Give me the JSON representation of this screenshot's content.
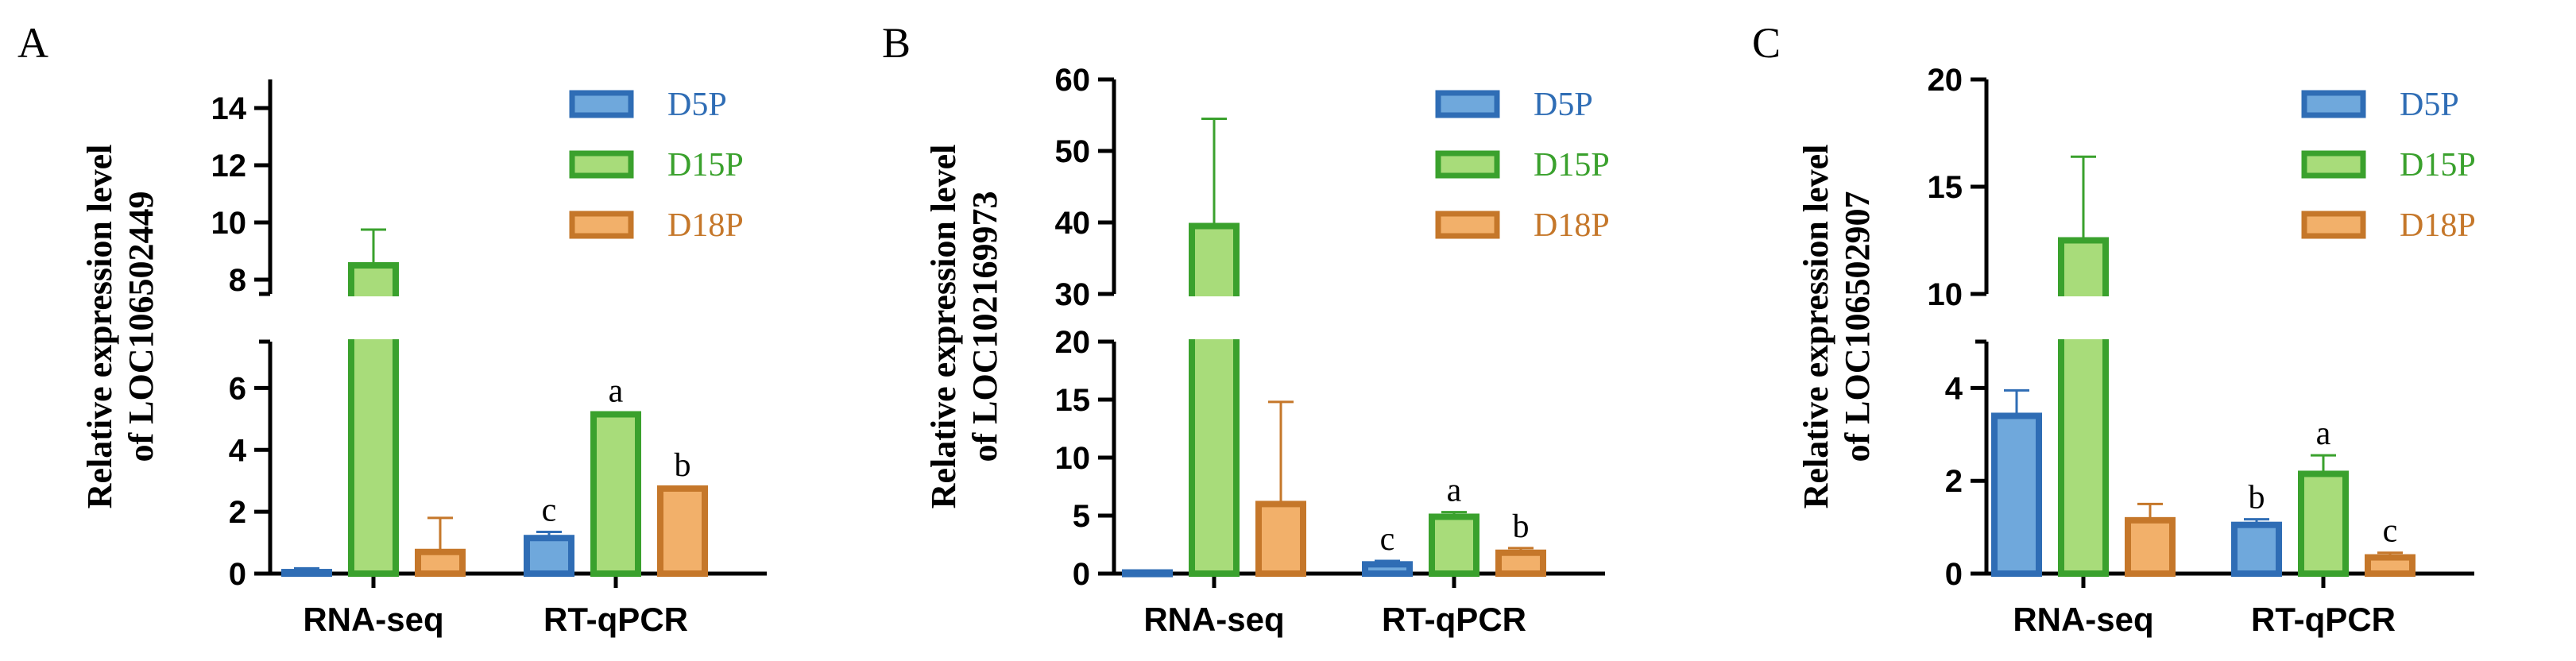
{
  "colors": {
    "D5P": {
      "fill": "#6fa8dc",
      "stroke": "#2f6db5",
      "text": "#2f6db5"
    },
    "D15P": {
      "fill": "#a8dc7a",
      "stroke": "#3aa12d",
      "text": "#3aa12d"
    },
    "D18P": {
      "fill": "#f2b06a",
      "stroke": "#c5772a",
      "text": "#c5772a"
    }
  },
  "chart_data": [
    {
      "type": "bar",
      "panel": "A",
      "ylabel": [
        "Relative expression level",
        "of LOC106502449"
      ],
      "categories": [
        "RNA-seq",
        "RT-qPCR"
      ],
      "legend": [
        "D5P",
        "D15P",
        "D18P"
      ],
      "legend_position": "top-right",
      "axis_break": true,
      "ylim_lower": [
        0,
        7.5
      ],
      "ylim_upper": [
        7.5,
        15
      ],
      "yticks_lower": [
        0,
        2,
        4,
        6
      ],
      "yticks_upper": [
        8,
        10,
        12,
        14
      ],
      "series": [
        {
          "name": "D5P",
          "values": [
            0.05,
            1.15
          ],
          "errors": [
            0.12,
            0.2
          ]
        },
        {
          "name": "D15P",
          "values": [
            8.5,
            5.15
          ],
          "errors": [
            1.25,
            0.05
          ]
        },
        {
          "name": "D18P",
          "values": [
            0.7,
            2.75
          ],
          "errors": [
            1.1,
            0.05
          ]
        }
      ],
      "significance": [
        [
          null,
          "c"
        ],
        [
          null,
          "a"
        ],
        [
          null,
          "b"
        ]
      ]
    },
    {
      "type": "bar",
      "panel": "B",
      "ylabel": [
        "Relative expression level",
        "of LOC102169973"
      ],
      "categories": [
        "RNA-seq",
        "RT-qPCR"
      ],
      "legend": [
        "D5P",
        "D15P",
        "D18P"
      ],
      "legend_position": "top-right",
      "axis_break": true,
      "ylim_lower": [
        0,
        20
      ],
      "ylim_upper": [
        30,
        60
      ],
      "yticks_lower": [
        0,
        5,
        10,
        15,
        20
      ],
      "yticks_upper": [
        30,
        40,
        50,
        60
      ],
      "series": [
        {
          "name": "D5P",
          "values": [
            0.1,
            0.8
          ],
          "errors": [
            0.05,
            0.3
          ]
        },
        {
          "name": "D15P",
          "values": [
            39.5,
            4.9
          ],
          "errors": [
            15.0,
            0.4
          ]
        },
        {
          "name": "D18P",
          "values": [
            6.0,
            1.8
          ],
          "errors": [
            8.8,
            0.4
          ]
        }
      ],
      "significance": [
        [
          null,
          "c"
        ],
        [
          null,
          "a"
        ],
        [
          null,
          "b"
        ]
      ]
    },
    {
      "type": "bar",
      "panel": "C",
      "ylabel": [
        "Relative expression level",
        "of LOC106502907"
      ],
      "categories": [
        "RNA-seq",
        "RT-qPCR"
      ],
      "legend": [
        "D5P",
        "D15P",
        "D18P"
      ],
      "legend_position": "top-right",
      "axis_break": true,
      "ylim_lower": [
        0,
        5
      ],
      "ylim_upper": [
        10,
        20
      ],
      "yticks_lower": [
        0,
        2,
        4
      ],
      "yticks_upper": [
        10,
        15,
        20
      ],
      "series": [
        {
          "name": "D5P",
          "values": [
            3.4,
            1.05
          ],
          "errors": [
            0.55,
            0.12
          ]
        },
        {
          "name": "D15P",
          "values": [
            12.5,
            2.15
          ],
          "errors": [
            3.9,
            0.4
          ]
        },
        {
          "name": "D18P",
          "values": [
            1.15,
            0.35
          ],
          "errors": [
            0.35,
            0.1
          ]
        }
      ],
      "significance": [
        [
          null,
          "b"
        ],
        [
          null,
          "a"
        ],
        [
          null,
          "c"
        ]
      ]
    }
  ]
}
